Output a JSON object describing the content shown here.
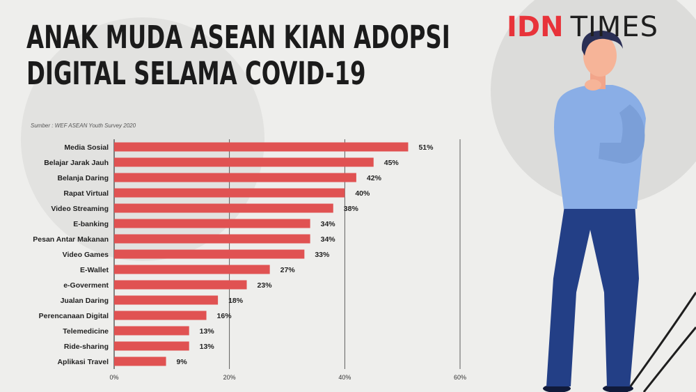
{
  "title": {
    "line1": "ANAK MUDA ASEAN KIAN ADOPSI",
    "line2": "DIGITAL SELAMA COVID-19"
  },
  "source": "Sumber : WEF ASEAN Youth Survey 2020",
  "brand": {
    "part1": "IDN",
    "part2": "TIMES"
  },
  "colors": {
    "bar": "#e05252",
    "title": "#1b1b1b",
    "brand_red": "#e8333a"
  },
  "chart_data": {
    "type": "bar",
    "orientation": "horizontal",
    "categories": [
      "Media Sosial",
      "Belajar Jarak Jauh",
      "Belanja Daring",
      "Rapat Virtual",
      "Video Streaming",
      "E-banking",
      "Pesan Antar Makanan",
      "Video Games",
      "E-Wallet",
      "e-Goverment",
      "Jualan Daring",
      "Perencanaan Digital",
      "Telemedicine",
      "Ride-sharing",
      "Aplikasi Travel"
    ],
    "values": [
      51,
      45,
      42,
      40,
      38,
      34,
      34,
      33,
      27,
      23,
      18,
      16,
      13,
      13,
      9
    ],
    "value_labels": [
      "51%",
      "45%",
      "42%",
      "40%",
      "38%",
      "34%",
      "34%",
      "33%",
      "27%",
      "23%",
      "18%",
      "16%",
      "13%",
      "13%",
      "9%"
    ],
    "xlim": [
      0,
      60
    ],
    "xticks": [
      0,
      20,
      40,
      60
    ],
    "xtick_labels": [
      "0%",
      "20%",
      "40%",
      "60%"
    ],
    "grid": true
  }
}
